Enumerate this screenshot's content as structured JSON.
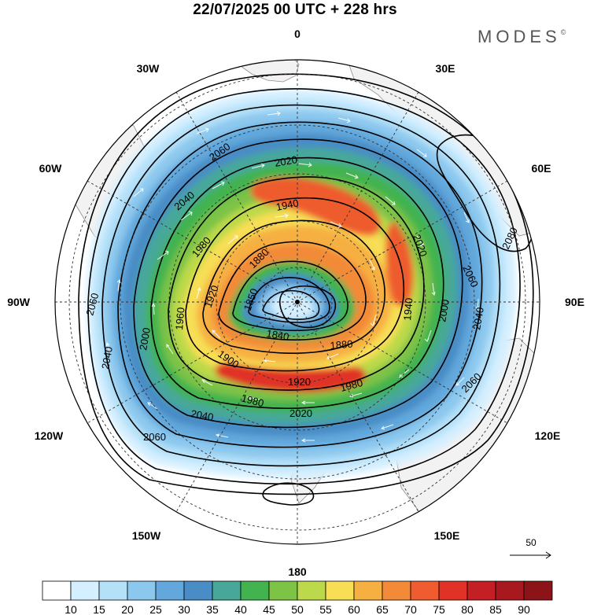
{
  "header": {
    "title": "22/07/2025  00 UTC  + 228 hrs",
    "brand": "MODES",
    "brand_mark": "©"
  },
  "longitude_labels": {
    "top": "0",
    "top_right": "30E",
    "upper_right": "60E",
    "right": "90E",
    "lower_right": "120E",
    "bottom_right": "150E",
    "bottom": "180",
    "bottom_left": "150W",
    "lower_left": "120W",
    "left": "90W",
    "upper_left": "60W",
    "top_left": "30W"
  },
  "contour_labels": [
    "2060",
    "2020",
    "2040",
    "1940",
    "1980",
    "2020",
    "1880",
    "2060",
    "2080",
    "1920",
    "1850",
    "1960",
    "2000",
    "2040",
    "2060",
    "1940",
    "2000",
    "2040",
    "1840",
    "1880",
    "1900",
    "1920",
    "1980",
    "2060",
    "2040",
    "2020",
    "2060",
    "1980"
  ],
  "wind_legend": {
    "reference_speed": "50"
  },
  "colorbar": {
    "ticks": [
      "10",
      "15",
      "20",
      "25",
      "30",
      "35",
      "40",
      "45",
      "50",
      "55",
      "60",
      "65",
      "70",
      "75",
      "80",
      "85",
      "90"
    ],
    "colors": [
      "#ffffff",
      "#d4efff",
      "#b4e0f8",
      "#8cc8ee",
      "#62a8dc",
      "#4a8cc6",
      "#47a89a",
      "#43b34f",
      "#7cc346",
      "#bbd94a",
      "#f7de55",
      "#f6b042",
      "#f38a38",
      "#ee5c2f",
      "#e03226",
      "#c41f24",
      "#a8191f",
      "#8c1418"
    ]
  },
  "colors": {
    "land": "#f2f2f2",
    "contour": "#000000",
    "arrows": "#ffffff"
  }
}
